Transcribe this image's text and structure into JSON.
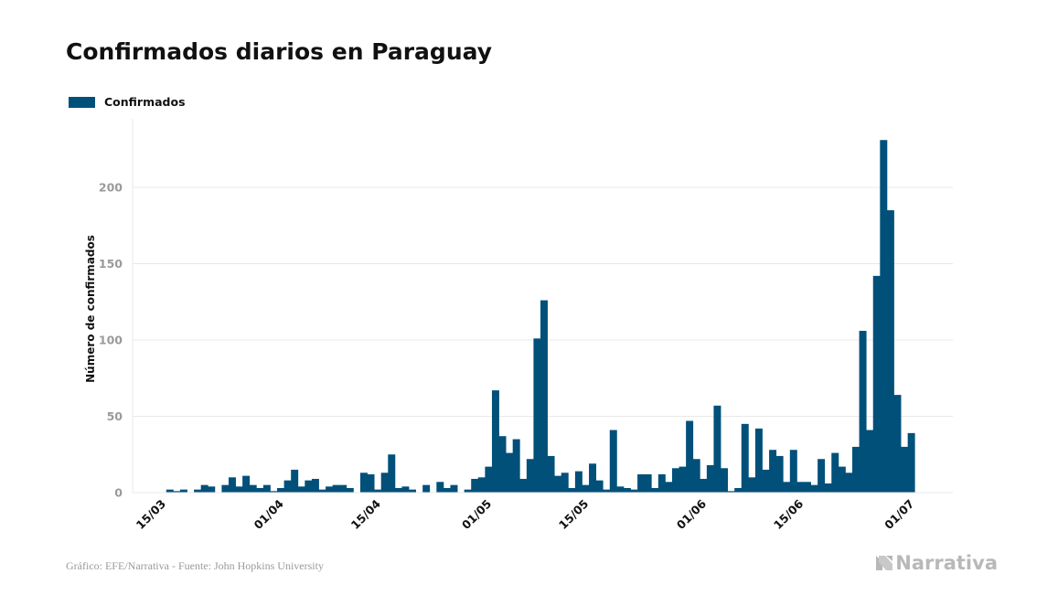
{
  "title": "Confirmados diarios en Paraguay",
  "source": "Gráfico: EFE/Narrativa - Fuente: John Hopkins University",
  "brand": {
    "name": "Narrativa",
    "icon": "narrativa-logo-icon"
  },
  "colors": {
    "bar": "#00507a",
    "grid": "#e8e8e8",
    "tick": "#9a9a9a"
  },
  "chart_data": {
    "type": "bar",
    "title": "Confirmados diarios en Paraguay",
    "ylabel": "Número de confirmados",
    "xlabel": "",
    "ylim": [
      0,
      240
    ],
    "yticks": [
      0,
      50,
      100,
      150,
      200
    ],
    "grid": true,
    "legend_position": "top-left",
    "xtick_labels": [
      {
        "label": "15/03",
        "date": "2020-03-15"
      },
      {
        "label": "01/04",
        "date": "2020-04-01"
      },
      {
        "label": "15/04",
        "date": "2020-04-15"
      },
      {
        "label": "01/05",
        "date": "2020-05-01"
      },
      {
        "label": "15/05",
        "date": "2020-05-15"
      },
      {
        "label": "01/06",
        "date": "2020-06-01"
      },
      {
        "label": "15/06",
        "date": "2020-06-15"
      },
      {
        "label": "01/07",
        "date": "2020-07-01"
      }
    ],
    "series": [
      {
        "name": "Confirmados",
        "x": [
          "2020-03-16",
          "2020-03-17",
          "2020-03-18",
          "2020-03-19",
          "2020-03-20",
          "2020-03-21",
          "2020-03-22",
          "2020-03-23",
          "2020-03-24",
          "2020-03-25",
          "2020-03-26",
          "2020-03-27",
          "2020-03-28",
          "2020-03-29",
          "2020-03-30",
          "2020-03-31",
          "2020-04-01",
          "2020-04-02",
          "2020-04-03",
          "2020-04-04",
          "2020-04-05",
          "2020-04-06",
          "2020-04-07",
          "2020-04-08",
          "2020-04-09",
          "2020-04-10",
          "2020-04-11",
          "2020-04-12",
          "2020-04-13",
          "2020-04-14",
          "2020-04-15",
          "2020-04-16",
          "2020-04-17",
          "2020-04-18",
          "2020-04-19",
          "2020-04-20",
          "2020-04-21",
          "2020-04-22",
          "2020-04-23",
          "2020-04-24",
          "2020-04-25",
          "2020-04-26",
          "2020-04-27",
          "2020-04-28",
          "2020-04-29",
          "2020-04-30",
          "2020-05-01",
          "2020-05-02",
          "2020-05-03",
          "2020-05-04",
          "2020-05-05",
          "2020-05-06",
          "2020-05-07",
          "2020-05-08",
          "2020-05-09",
          "2020-05-10",
          "2020-05-11",
          "2020-05-12",
          "2020-05-13",
          "2020-05-14",
          "2020-05-15",
          "2020-05-16",
          "2020-05-17",
          "2020-05-18",
          "2020-05-19",
          "2020-05-20",
          "2020-05-21",
          "2020-05-22",
          "2020-05-23",
          "2020-05-24",
          "2020-05-25",
          "2020-05-26",
          "2020-05-27",
          "2020-05-28",
          "2020-05-29",
          "2020-05-30",
          "2020-05-31",
          "2020-06-01",
          "2020-06-02",
          "2020-06-03",
          "2020-06-04",
          "2020-06-05",
          "2020-06-06",
          "2020-06-07",
          "2020-06-08",
          "2020-06-09",
          "2020-06-10",
          "2020-06-11",
          "2020-06-12",
          "2020-06-13",
          "2020-06-14",
          "2020-06-15",
          "2020-06-16",
          "2020-06-17",
          "2020-06-18",
          "2020-06-19",
          "2020-06-20",
          "2020-06-21",
          "2020-06-22",
          "2020-06-23",
          "2020-06-24",
          "2020-06-25",
          "2020-06-26",
          "2020-06-27",
          "2020-06-28",
          "2020-06-29",
          "2020-06-30",
          "2020-07-01"
        ],
        "values": [
          2,
          1,
          2,
          0,
          2,
          5,
          4,
          0,
          5,
          10,
          4,
          11,
          5,
          3,
          5,
          1,
          3,
          8,
          15,
          4,
          8,
          9,
          2,
          4,
          5,
          5,
          3,
          0,
          13,
          12,
          2,
          13,
          25,
          3,
          4,
          2,
          0,
          5,
          0,
          7,
          3,
          5,
          0,
          2,
          9,
          10,
          17,
          67,
          37,
          26,
          35,
          9,
          22,
          101,
          126,
          24,
          11,
          13,
          3,
          14,
          5,
          19,
          8,
          2,
          41,
          4,
          3,
          2,
          12,
          12,
          3,
          12,
          7,
          16,
          17,
          47,
          22,
          9,
          18,
          57,
          16,
          1,
          3,
          45,
          10,
          42,
          15,
          28,
          24,
          7,
          28,
          7,
          7,
          5,
          22,
          6,
          26,
          17,
          13,
          30,
          106,
          41,
          142,
          231,
          185,
          64,
          30,
          39
        ]
      }
    ]
  }
}
